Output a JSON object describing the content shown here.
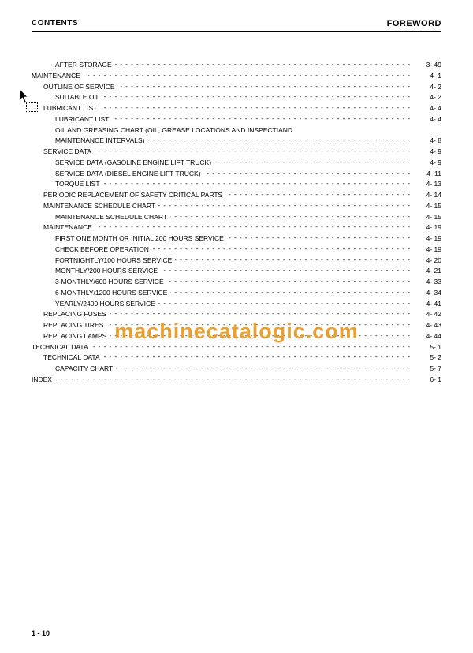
{
  "header": {
    "left": "CONTENTS",
    "right": "FOREWORD"
  },
  "footer": "1 - 10",
  "watermark": "machinecatalogic.com",
  "toc": [
    {
      "indent": 2,
      "label": "AFTER STORAGE",
      "page": "3- 49"
    },
    {
      "indent": 0,
      "label": "MAINTENANCE",
      "page": "4-  1"
    },
    {
      "indent": 1,
      "label": "OUTLINE OF SERVICE",
      "page": "4-  2"
    },
    {
      "indent": 2,
      "label": "SUITABLE OIL",
      "page": "4-  2"
    },
    {
      "indent": 1,
      "label": "LUBRICANT LIST",
      "page": "4-  4"
    },
    {
      "indent": 2,
      "label": "LUBRICANT LIST",
      "page": "4-  4"
    },
    {
      "indent": 2,
      "label": "OIL AND GREASING CHART (OIL, GREASE LOCATIONS AND INSPECTIAND",
      "wrap": true
    },
    {
      "indent": 2,
      "label": "MAINTENANCE INTERVALS)",
      "page": "4-  8"
    },
    {
      "indent": 1,
      "label": "SERVICE DATA",
      "page": "4-  9"
    },
    {
      "indent": 2,
      "label": "SERVICE DATA (GASOLINE ENGINE LIFT TRUCK)",
      "page": "4-  9"
    },
    {
      "indent": 2,
      "label": "SERVICE DATA (DIESEL ENGINE LIFT TRUCK)",
      "page": "4- 11"
    },
    {
      "indent": 2,
      "label": "TORQUE LIST",
      "page": "4- 13"
    },
    {
      "indent": 1,
      "label": "PERIODIC REPLACEMENT OF SAFETY CRITICAL PARTS",
      "page": "4- 14"
    },
    {
      "indent": 1,
      "label": "MAINTENANCE SCHEDULE CHART",
      "page": "4- 15"
    },
    {
      "indent": 2,
      "label": "MAINTENANCE SCHEDULE CHART",
      "page": "4- 15"
    },
    {
      "indent": 1,
      "label": "MAINTENANCE",
      "page": "4- 19"
    },
    {
      "indent": 2,
      "label": "FIRST ONE MONTH OR INITIAL 200 HOURS SERVICE",
      "page": "4- 19"
    },
    {
      "indent": 2,
      "label": "CHECK BEFORE OPERATION",
      "page": "4- 19"
    },
    {
      "indent": 2,
      "label": "FORTNIGHTLY/100 HOURS SERVICE",
      "page": "4- 20"
    },
    {
      "indent": 2,
      "label": "MONTHLY/200 HOURS SERVICE",
      "page": "4- 21"
    },
    {
      "indent": 2,
      "label": "3-MONTHLY/600 HOURS SERVICE",
      "page": "4- 33"
    },
    {
      "indent": 2,
      "label": "6-MONTHLY/1200 HOURS SERVICE",
      "page": "4- 34"
    },
    {
      "indent": 2,
      "label": "YEARLY/2400 HOURS SERVICE",
      "page": "4- 41"
    },
    {
      "indent": 1,
      "label": "REPLACING FUSES",
      "page": "4- 42"
    },
    {
      "indent": 1,
      "label": "REPLACING TIRES",
      "page": "4- 43"
    },
    {
      "indent": 1,
      "label": "REPLACING LAMPS",
      "page": "4- 44"
    },
    {
      "indent": 0,
      "label": "TECHNICAL DATA",
      "page": "5-  1"
    },
    {
      "indent": 1,
      "label": "TECHNICAL DATA",
      "page": "5-  2"
    },
    {
      "indent": 2,
      "label": "CAPACITY CHART",
      "page": "5-  7"
    },
    {
      "indent": 0,
      "label": "INDEX",
      "page": "6-  1"
    }
  ]
}
